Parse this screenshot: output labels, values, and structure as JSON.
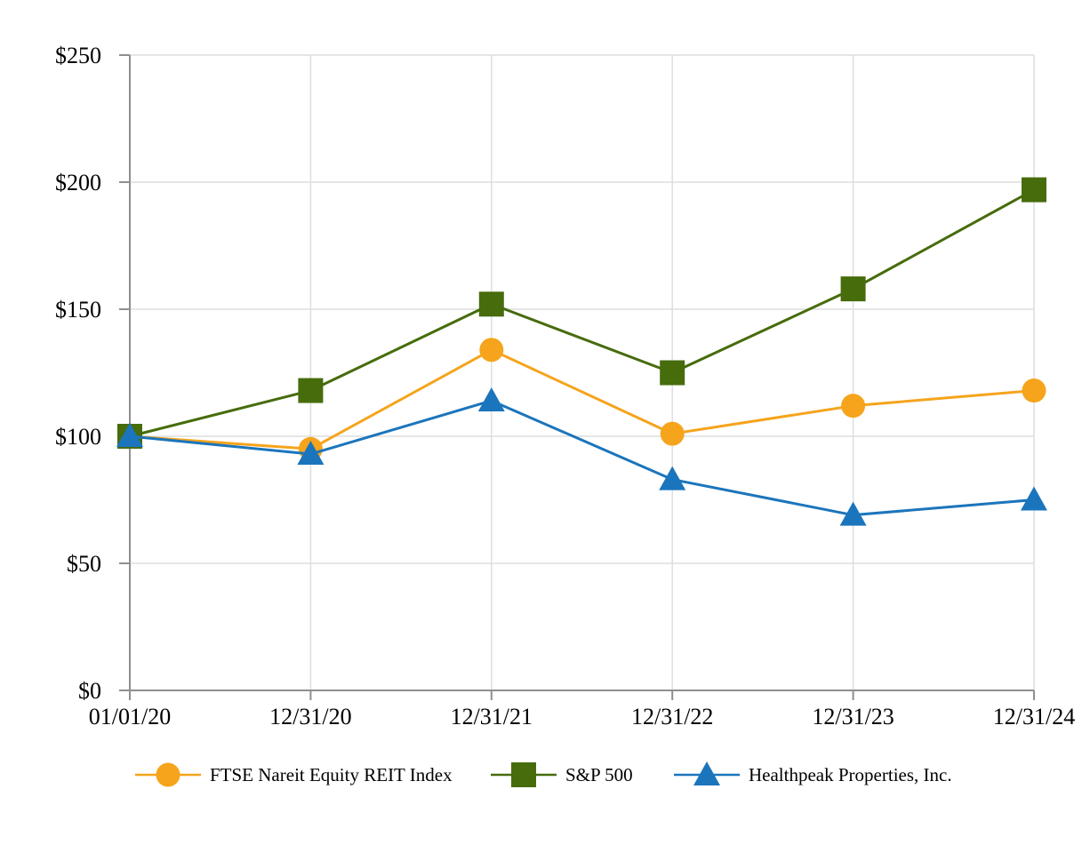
{
  "chart_data": {
    "type": "line",
    "title": "",
    "categories": [
      "01/01/20",
      "12/31/20",
      "12/31/21",
      "12/31/22",
      "12/31/23",
      "12/31/24"
    ],
    "y_axis": {
      "tick_labels": [
        "$0",
        "$50",
        "$100",
        "$150",
        "$200",
        "$250"
      ],
      "tick_values": [
        0,
        50,
        100,
        150,
        200,
        250
      ],
      "min": 0,
      "max": 250
    },
    "series": [
      {
        "name": "FTSE Nareit Equity REIT Index",
        "marker": "circle",
        "color": "#F5A41C",
        "values": [
          100,
          95,
          134,
          101,
          112,
          118
        ]
      },
      {
        "name": "S&P 500",
        "marker": "square",
        "color": "#466C0C",
        "values": [
          100,
          118,
          152,
          125,
          158,
          197
        ]
      },
      {
        "name": "Healthpeak Properties, Inc.",
        "marker": "triangle",
        "color": "#1B75BC",
        "values": [
          100,
          93,
          114,
          83,
          69,
          75
        ]
      }
    ],
    "grid": true,
    "legend_position": "bottom",
    "colors": {
      "axis": "#8F8F8F",
      "gridline": "#DEDEDE",
      "text": "#000000",
      "background": "#FFFFFF"
    }
  }
}
